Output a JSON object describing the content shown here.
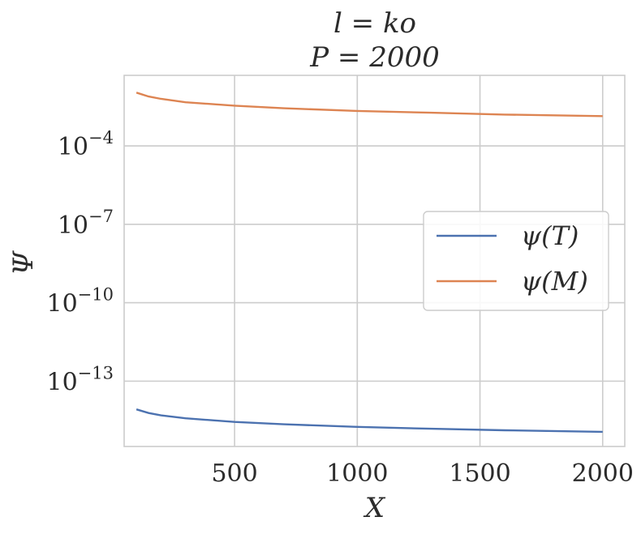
{
  "chart_data": {
    "type": "line",
    "title_line1": "l = ko",
    "title_line2": "P = 2000",
    "xlabel": "X",
    "ylabel": "Ψ",
    "yscale": "log",
    "xlim": [
      50,
      2090
    ],
    "ylim_log10": [
      -15.5,
      -1.3
    ],
    "grid": true,
    "legend_position": "center-right",
    "x_ticks": [
      {
        "value": 500,
        "label": "500"
      },
      {
        "value": 1000,
        "label": "1000"
      },
      {
        "value": 1500,
        "label": "1500"
      },
      {
        "value": 2000,
        "label": "2000"
      }
    ],
    "y_ticks": [
      {
        "log10": -4,
        "base": "10",
        "exp": "−4"
      },
      {
        "log10": -7,
        "base": "10",
        "exp": "−7"
      },
      {
        "log10": -10,
        "base": "10",
        "exp": "−10"
      },
      {
        "log10": -13,
        "base": "10",
        "exp": "−13"
      }
    ],
    "series": [
      {
        "name": "ψ(T)",
        "color": "#4c72b0",
        "x": [
          100,
          150,
          200,
          300,
          500,
          700,
          1000,
          1300,
          1600,
          2000
        ],
        "log10_y": [
          -14.08,
          -14.22,
          -14.31,
          -14.42,
          -14.56,
          -14.65,
          -14.75,
          -14.82,
          -14.88,
          -14.94
        ]
      },
      {
        "name": "ψ(M)",
        "color": "#dd8452",
        "x": [
          100,
          150,
          200,
          300,
          500,
          700,
          1000,
          1300,
          1600,
          2000
        ],
        "log10_y": [
          -1.96,
          -2.11,
          -2.2,
          -2.33,
          -2.46,
          -2.56,
          -2.66,
          -2.73,
          -2.8,
          -2.86
        ]
      }
    ]
  }
}
